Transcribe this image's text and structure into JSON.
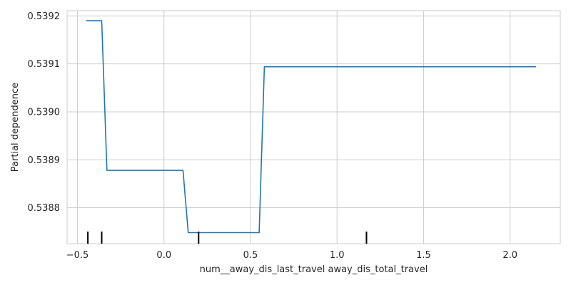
{
  "chart_data": {
    "type": "line",
    "xlabel": "num__away_dis_last_travel away_dis_total_travel",
    "ylabel": "Partial dependence",
    "xlim": [
      -0.56,
      2.29
    ],
    "ylim": [
      0.538725,
      0.539211
    ],
    "x_ticks": [
      -0.5,
      0.0,
      0.5,
      1.0,
      1.5,
      2.0
    ],
    "x_tick_labels": [
      "−0.5",
      "0.0",
      "0.5",
      "1.0",
      "1.5",
      "2.0"
    ],
    "y_ticks": [
      0.5388,
      0.5389,
      0.539,
      0.5391,
      0.5392
    ],
    "y_tick_labels": [
      "0.5388",
      "0.5389",
      "0.5390",
      "0.5391",
      "0.5392"
    ],
    "grid": true,
    "series": [
      {
        "color": "#1f77b4",
        "x": [
          -0.45,
          -0.36,
          -0.33,
          0.11,
          0.14,
          0.55,
          0.58,
          2.15
        ],
        "y": [
          0.53919,
          0.53919,
          0.538878,
          0.538878,
          0.538748,
          0.538748,
          0.539094,
          0.539094
        ]
      }
    ],
    "rug": {
      "color": "#000000",
      "x": [
        -0.44,
        -0.36,
        0.2,
        1.17
      ]
    }
  }
}
